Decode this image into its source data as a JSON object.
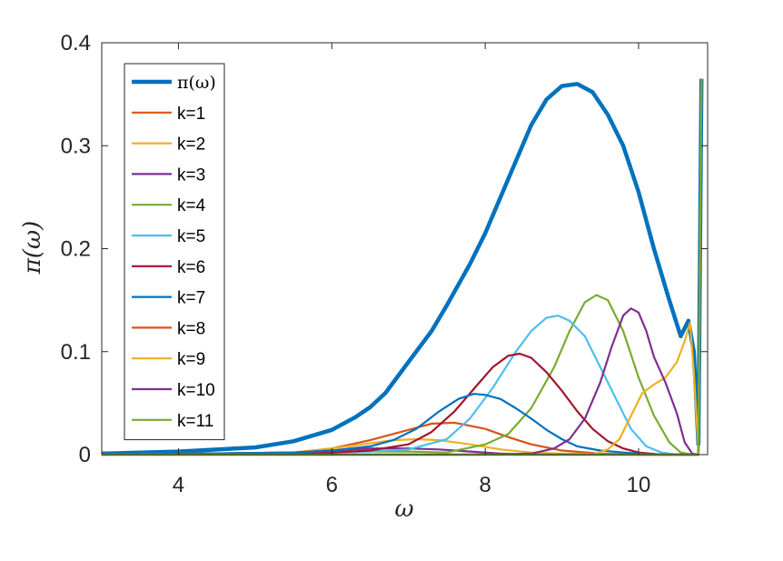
{
  "chart_data": {
    "type": "line",
    "title": "",
    "xlabel": "ω",
    "ylabel": "π(ω)",
    "xlim": [
      3,
      10.9
    ],
    "ylim": [
      0,
      0.4
    ],
    "xticks": [
      4,
      6,
      8,
      10
    ],
    "yticks": [
      0,
      0.1,
      0.2,
      0.3,
      0.4
    ],
    "xtick_labels": [
      "4",
      "6",
      "8",
      "10"
    ],
    "ytick_labels": [
      "0",
      "0.1",
      "0.2",
      "0.3",
      "0.4"
    ],
    "grid": false,
    "legend_position": "top-left",
    "legend_title_text": "π(ω)",
    "series": [
      {
        "name": "π(ω)",
        "color": "#0072BD",
        "width": 4.5,
        "x": [
          3,
          4,
          5,
          5.5,
          6,
          6.3,
          6.5,
          6.7,
          7,
          7.3,
          7.5,
          7.8,
          8,
          8.2,
          8.4,
          8.6,
          8.8,
          9.0,
          9.2,
          9.4,
          9.6,
          9.8,
          10.0,
          10.2,
          10.4,
          10.55,
          10.65,
          10.72,
          10.78,
          10.82
        ],
        "y": [
          0.001,
          0.003,
          0.007,
          0.013,
          0.024,
          0.036,
          0.046,
          0.06,
          0.09,
          0.12,
          0.145,
          0.185,
          0.215,
          0.25,
          0.285,
          0.32,
          0.345,
          0.358,
          0.36,
          0.352,
          0.33,
          0.3,
          0.255,
          0.2,
          0.15,
          0.115,
          0.13,
          0.1,
          0.01,
          0.365
        ]
      },
      {
        "name": "k=1",
        "color": "#D95319",
        "width": 2.2,
        "x": [
          3,
          5.5,
          6,
          6.5,
          7,
          7.3,
          7.6,
          8,
          8.3,
          8.6,
          9,
          9.5,
          10,
          10.7,
          10.78,
          10.82
        ],
        "y": [
          0,
          0.002,
          0.006,
          0.014,
          0.024,
          0.03,
          0.031,
          0.025,
          0.017,
          0.01,
          0.004,
          0.001,
          0,
          0,
          0,
          0.365
        ]
      },
      {
        "name": "k=2",
        "color": "#EDB120",
        "width": 2.2,
        "x": [
          3,
          5.5,
          6,
          6.4,
          6.8,
          7.1,
          7.4,
          7.8,
          8.2,
          8.6,
          9,
          10,
          10.7,
          10.78,
          10.82
        ],
        "y": [
          0,
          0.002,
          0.006,
          0.01,
          0.014,
          0.015,
          0.014,
          0.01,
          0.005,
          0.002,
          0.001,
          0,
          0,
          0,
          0.365
        ]
      },
      {
        "name": "k=3",
        "color": "#7E2F8E",
        "width": 2.2,
        "x": [
          3,
          5.5,
          6,
          6.5,
          7,
          7.4,
          7.8,
          8.2,
          8.6,
          9,
          10,
          10.7,
          10.78,
          10.82
        ],
        "y": [
          0,
          0.002,
          0.004,
          0.006,
          0.006,
          0.005,
          0.003,
          0.001,
          0,
          0,
          0,
          0,
          0,
          0.365
        ]
      },
      {
        "name": "k=4",
        "color": "#77AC30",
        "width": 2.2,
        "x": [
          3,
          5.5,
          6,
          6.5,
          7,
          7.5,
          8,
          8.3,
          8.6,
          8.9,
          9.1,
          9.3,
          9.45,
          9.6,
          9.8,
          10,
          10.2,
          10.4,
          10.55,
          10.7,
          10.78,
          10.82
        ],
        "y": [
          0,
          0.001,
          0.002,
          0.003,
          0.003,
          0.002,
          0.01,
          0.02,
          0.045,
          0.085,
          0.12,
          0.148,
          0.155,
          0.15,
          0.12,
          0.075,
          0.038,
          0.012,
          0.002,
          0,
          0,
          0.365
        ]
      },
      {
        "name": "k=5",
        "color": "#4DBEEE",
        "width": 2.2,
        "x": [
          3,
          5.5,
          6,
          6.5,
          7,
          7.5,
          7.8,
          8.1,
          8.4,
          8.6,
          8.8,
          8.95,
          9.1,
          9.3,
          9.5,
          9.7,
          9.9,
          10.1,
          10.3,
          10.5,
          10.7,
          10.78,
          10.82
        ],
        "y": [
          0,
          0.001,
          0.002,
          0.003,
          0.005,
          0.015,
          0.035,
          0.065,
          0.1,
          0.12,
          0.133,
          0.135,
          0.13,
          0.115,
          0.085,
          0.055,
          0.025,
          0.008,
          0.002,
          0,
          0,
          0,
          0.365
        ]
      },
      {
        "name": "k=6",
        "color": "#A2142F",
        "width": 2.2,
        "x": [
          3,
          5.5,
          6,
          6.5,
          7,
          7.3,
          7.6,
          7.9,
          8.1,
          8.3,
          8.45,
          8.6,
          8.8,
          9.0,
          9.2,
          9.4,
          9.6,
          9.8,
          10,
          10.3,
          10.7,
          10.78,
          10.82
        ],
        "y": [
          0,
          0.001,
          0.002,
          0.004,
          0.01,
          0.022,
          0.042,
          0.068,
          0.085,
          0.096,
          0.098,
          0.094,
          0.08,
          0.062,
          0.042,
          0.025,
          0.013,
          0.006,
          0.002,
          0,
          0,
          0,
          0.365
        ]
      },
      {
        "name": "k=7",
        "color": "#0072BD",
        "width": 2.2,
        "x": [
          3,
          5.5,
          6,
          6.5,
          6.8,
          7.1,
          7.4,
          7.65,
          7.85,
          8.0,
          8.2,
          8.4,
          8.6,
          8.8,
          9.0,
          9.2,
          9.5,
          9.8,
          10.2,
          10.7,
          10.78,
          10.82
        ],
        "y": [
          0,
          0.002,
          0.004,
          0.008,
          0.014,
          0.025,
          0.042,
          0.054,
          0.059,
          0.058,
          0.054,
          0.045,
          0.035,
          0.024,
          0.015,
          0.008,
          0.004,
          0.002,
          0,
          0,
          0,
          0.365
        ]
      },
      {
        "name": "k=8",
        "color": "#D95319",
        "width": 2.2,
        "x": [
          3,
          6,
          7,
          8,
          9,
          10,
          10.7,
          10.78,
          10.82
        ],
        "y": [
          0,
          0,
          0,
          0,
          0,
          0,
          0,
          0,
          0.365
        ]
      },
      {
        "name": "k=9",
        "color": "#EDB120",
        "width": 2.2,
        "x": [
          3,
          6,
          8,
          9.4,
          9.6,
          9.75,
          9.85,
          9.95,
          10.05,
          10.2,
          10.35,
          10.5,
          10.6,
          10.67,
          10.72,
          10.78,
          10.82
        ],
        "y": [
          0,
          0,
          0,
          0,
          0.005,
          0.015,
          0.03,
          0.045,
          0.06,
          0.068,
          0.075,
          0.09,
          0.11,
          0.128,
          0.08,
          0.005,
          0.365
        ]
      },
      {
        "name": "k=10",
        "color": "#7E2F8E",
        "width": 2.2,
        "x": [
          3,
          6,
          8,
          8.6,
          8.9,
          9.1,
          9.3,
          9.5,
          9.65,
          9.8,
          9.9,
          10.0,
          10.1,
          10.2,
          10.35,
          10.5,
          10.6,
          10.7,
          10.78,
          10.82
        ],
        "y": [
          0,
          0,
          0,
          0.001,
          0.006,
          0.015,
          0.035,
          0.07,
          0.105,
          0.135,
          0.142,
          0.138,
          0.12,
          0.095,
          0.07,
          0.04,
          0.012,
          0.001,
          0,
          0.365
        ]
      },
      {
        "name": "k=11",
        "color": "#77AC30",
        "width": 2.2,
        "x": [
          3,
          6,
          8,
          10,
          10.5,
          10.65,
          10.7,
          10.78,
          10.82
        ],
        "y": [
          0,
          0,
          0,
          0,
          0,
          0,
          0,
          0,
          0.365
        ]
      }
    ]
  }
}
